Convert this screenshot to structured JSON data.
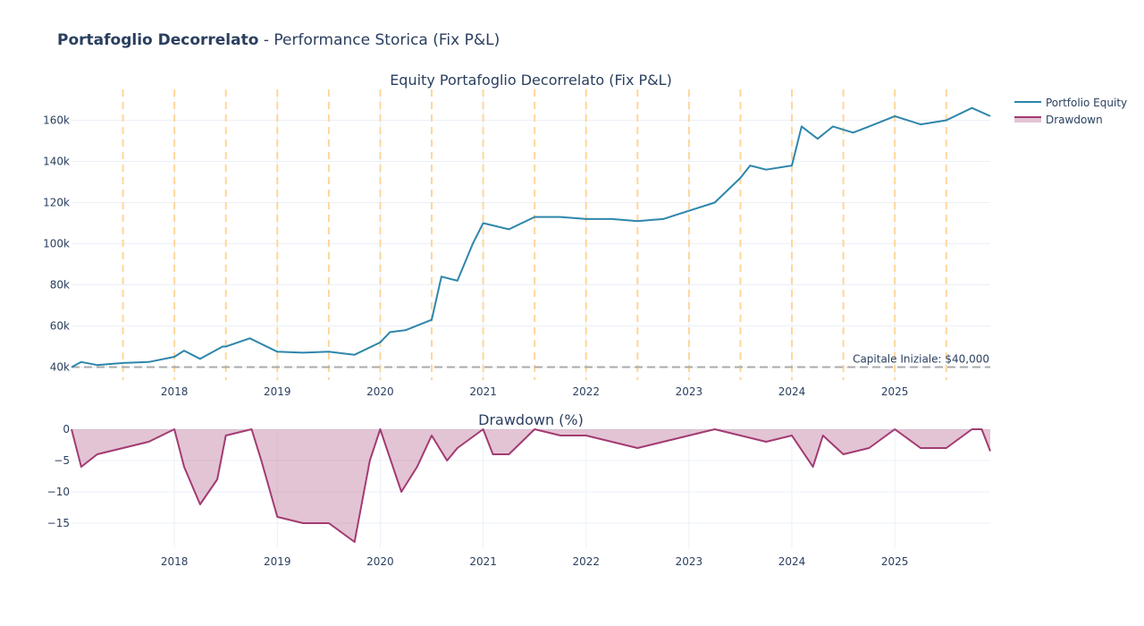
{
  "title_bold": "Portafoglio Decorrelato",
  "title_rest": " - Performance Storica (Fix P&L)",
  "chart_data": [
    {
      "type": "line",
      "title": "Equity Portafoglio Decorrelato (Fix P&L)",
      "xlim": [
        "2017-01-01",
        "2025-12-05"
      ],
      "ylim": [
        35000,
        175000
      ],
      "yticks": [
        40000,
        60000,
        80000,
        100000,
        120000,
        140000,
        160000
      ],
      "ytick_labels": [
        "40k",
        "60k",
        "80k",
        "100k",
        "120k",
        "140k",
        "160k"
      ],
      "xticks": [
        "2018",
        "2019",
        "2020",
        "2021",
        "2022",
        "2023",
        "2024",
        "2025"
      ],
      "grid": true,
      "color": "#2e86ab",
      "series": [
        {
          "name": "Portfolio Equity",
          "x": [
            "2017-01-01",
            "2017-02-05",
            "2017-04-01",
            "2017-07-01",
            "2017-10-01",
            "2018-01-01",
            "2018-02-05",
            "2018-04-01",
            "2018-06-20",
            "2018-07-01",
            "2018-09-25",
            "2019-01-01",
            "2019-04-01",
            "2019-07-01",
            "2019-10-01",
            "2020-01-01",
            "2020-02-05",
            "2020-04-01",
            "2020-07-01",
            "2020-08-05",
            "2020-10-01",
            "2020-11-25",
            "2021-01-01",
            "2021-04-01",
            "2021-07-01",
            "2021-10-01",
            "2022-01-01",
            "2022-04-01",
            "2022-07-01",
            "2022-10-01",
            "2023-01-01",
            "2023-04-01",
            "2023-07-01",
            "2023-08-05",
            "2023-10-01",
            "2024-01-01",
            "2024-02-05",
            "2024-04-01",
            "2024-05-25",
            "2024-08-05",
            "2024-10-01",
            "2025-01-01",
            "2025-04-01",
            "2025-07-01",
            "2025-10-01",
            "2025-12-05"
          ],
          "y": [
            40000,
            42500,
            41000,
            42000,
            42500,
            45000,
            48000,
            44000,
            50000,
            50000,
            54000,
            47500,
            47000,
            47500,
            46000,
            52000,
            57000,
            58000,
            63000,
            84000,
            82000,
            100000,
            110000,
            107000,
            113000,
            113000,
            112000,
            112000,
            111000,
            112000,
            116000,
            120000,
            132000,
            138000,
            136000,
            138000,
            157000,
            151000,
            157000,
            154000,
            157000,
            162000,
            158000,
            160000,
            166000,
            162000
          ]
        }
      ],
      "reference_line": {
        "y": 40000,
        "label": "Capitale Iniziale: $40,000",
        "color": "#aaaaaa"
      },
      "vlines": [
        "2017-07-01",
        "2018-01-01",
        "2018-07-01",
        "2019-01-01",
        "2019-07-01",
        "2020-01-01",
        "2020-07-01",
        "2021-01-01",
        "2021-07-01",
        "2022-01-01",
        "2022-07-01",
        "2023-01-01",
        "2023-07-01",
        "2024-01-01",
        "2024-07-01",
        "2025-01-01",
        "2025-07-01"
      ],
      "vline_color": "#ffd699"
    },
    {
      "type": "area",
      "title": "Drawdown (%)",
      "xlim": [
        "2017-01-01",
        "2025-12-05"
      ],
      "ylim": [
        -19,
        0
      ],
      "yticks": [
        0,
        -5,
        -10,
        -15
      ],
      "ytick_labels": [
        "0",
        "−5",
        "−10",
        "−15"
      ],
      "xticks": [
        "2018",
        "2019",
        "2020",
        "2021",
        "2022",
        "2023",
        "2024",
        "2025"
      ],
      "grid": true,
      "color": "#a23b72",
      "series": [
        {
          "name": "Drawdown",
          "x": [
            "2017-01-01",
            "2017-02-05",
            "2017-04-01",
            "2017-07-01",
            "2017-10-01",
            "2018-01-01",
            "2018-02-05",
            "2018-04-01",
            "2018-06-01",
            "2018-07-01",
            "2018-10-01",
            "2018-11-05",
            "2019-01-01",
            "2019-04-01",
            "2019-07-01",
            "2019-10-01",
            "2019-11-25",
            "2020-01-01",
            "2020-03-15",
            "2020-05-10",
            "2020-07-01",
            "2020-08-25",
            "2020-10-01",
            "2021-01-01",
            "2021-02-05",
            "2021-04-01",
            "2021-07-01",
            "2021-10-01",
            "2022-01-01",
            "2022-04-01",
            "2022-07-01",
            "2022-10-01",
            "2023-01-01",
            "2023-04-01",
            "2023-07-01",
            "2023-10-01",
            "2024-01-01",
            "2024-03-15",
            "2024-04-20",
            "2024-07-01",
            "2024-10-01",
            "2025-01-01",
            "2025-04-01",
            "2025-07-01",
            "2025-10-01",
            "2025-11-05",
            "2025-12-05"
          ],
          "y": [
            0,
            -6,
            -4,
            -3,
            -2,
            0,
            -6,
            -12,
            -8,
            -1,
            0,
            -5,
            -14,
            -15,
            -15,
            -18,
            -5,
            0,
            -10,
            -6,
            -1,
            -5,
            -3,
            0,
            -4,
            -4,
            0,
            -1,
            -1,
            -2,
            -3,
            -2,
            -1,
            0,
            -1,
            -2,
            -1,
            -6,
            -1,
            -4,
            -3,
            0,
            -3,
            -3,
            0,
            0,
            -3.5
          ]
        }
      ]
    }
  ]
}
